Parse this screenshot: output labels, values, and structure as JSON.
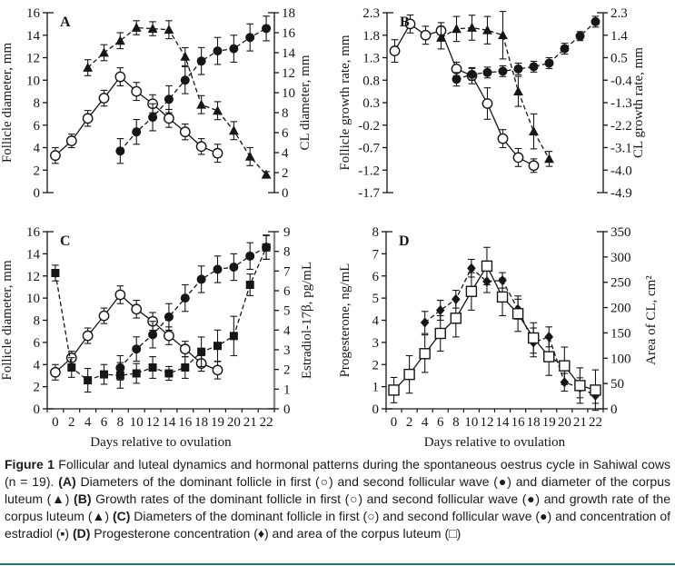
{
  "figure": {
    "caption_segments": [
      {
        "text": "Figure 1",
        "bold": true
      },
      {
        "text": " Follicular and luteal dynamics and hormonal patterns during the spontaneous oestrus cycle in Sahiwal cows (n = 19). ",
        "bold": false
      },
      {
        "text": "(A)",
        "bold": true
      },
      {
        "text": " Diameters of the dominant follicle in first (○) and second follicular wave (●) and diameter of the corpus luteum (▲) ",
        "bold": false
      },
      {
        "text": "(B)",
        "bold": true
      },
      {
        "text": " Growth rates of the dominant follicle in first (○) and second follicular wave (●) and growth rate of the corpus luteum (▲) ",
        "bold": false
      },
      {
        "text": "(C)",
        "bold": true
      },
      {
        "text": " Diameters of the dominant follicle in first (○) and second follicular wave (●) and concentration of estradiol (▪) ",
        "bold": false
      },
      {
        "text": "(D)",
        "bold": true
      },
      {
        "text": " Progesterone concentration (♦) and area of the corpus luteum (□)",
        "bold": false
      }
    ]
  },
  "chart_data": [
    {
      "id": "A",
      "type": "line",
      "x_axis": {
        "label": null,
        "categories": [
          0,
          2,
          4,
          6,
          8,
          10,
          12,
          14,
          16,
          18,
          19,
          20,
          21,
          22
        ],
        "show_labels": false
      },
      "left_axis": {
        "label": "Follicle diameter, mm",
        "min": 0,
        "max": 16,
        "step": 2,
        "ticks": [
          "0",
          "2",
          "4",
          "6",
          "8",
          "10",
          "12",
          "14",
          "16"
        ]
      },
      "right_axis": {
        "label": "CL diameter, mm",
        "min": 0,
        "max": 18,
        "step": 2,
        "ticks": [
          "0",
          "2",
          "4",
          "6",
          "8",
          "10",
          "12",
          "14",
          "16",
          "18"
        ]
      },
      "series": [
        {
          "name": "Dominant follicle diameter, first wave",
          "symbol": "○",
          "marker": "circle-open",
          "line": "solid",
          "axis": "left",
          "days": [
            0,
            2,
            4,
            6,
            8,
            10,
            12,
            14,
            16,
            18,
            19
          ],
          "values": [
            3.3,
            4.6,
            6.6,
            8.4,
            10.3,
            9.0,
            7.9,
            6.6,
            5.4,
            4.1,
            3.5
          ],
          "errors": [
            0.7,
            0.6,
            0.7,
            0.7,
            0.8,
            0.8,
            0.8,
            0.8,
            0.7,
            0.7,
            0.8
          ]
        },
        {
          "name": "Dominant follicle diameter, second wave",
          "symbol": "●",
          "marker": "circle-filled",
          "line": "dashed",
          "axis": "left",
          "days": [
            8,
            10,
            12,
            14,
            16,
            18,
            19,
            20,
            21,
            22
          ],
          "values": [
            3.7,
            5.4,
            6.7,
            8.3,
            10.0,
            11.7,
            12.6,
            12.8,
            13.8,
            14.6
          ],
          "errors": [
            1.1,
            1.1,
            1.2,
            1.2,
            1.2,
            1.2,
            1.2,
            1.2,
            1.2,
            1.1
          ]
        },
        {
          "name": "Corpus luteum diameter",
          "symbol": "▲",
          "marker": "triangle-filled",
          "line": "dashed",
          "axis": "right",
          "days": [
            4,
            6,
            8,
            10,
            12,
            14,
            16,
            18,
            19,
            20,
            21,
            22
          ],
          "values": [
            12.5,
            14.0,
            15.2,
            16.5,
            16.4,
            16.3,
            13.6,
            8.8,
            8.2,
            6.2,
            3.6,
            1.8
          ],
          "errors": [
            0.8,
            0.8,
            0.8,
            0.7,
            0.7,
            0.9,
            0.9,
            0.9,
            0.9,
            0.9,
            0.9,
            0.3
          ]
        }
      ]
    },
    {
      "id": "B",
      "type": "line",
      "x_axis": {
        "label": null,
        "categories": [
          0,
          2,
          4,
          6,
          8,
          10,
          12,
          14,
          16,
          18,
          19,
          20,
          21,
          22
        ],
        "show_labels": false
      },
      "left_axis": {
        "label": "Follicle growth rate, mm",
        "min": -1.7,
        "max": 2.3,
        "step": 0.5,
        "ticks": [
          "-1.7",
          "-1.2",
          "-0.7",
          "-0.2",
          "0.3",
          "0.8",
          "1.3",
          "1.8",
          "2.3"
        ]
      },
      "right_axis": {
        "label": "CL growth rate, mm",
        "min": -4.9,
        "max": 2.3,
        "step": 0.9,
        "ticks": [
          "-4.9",
          "-4.0",
          "-3.1",
          "-2.2",
          "-1.3",
          "-0.4",
          "0.5",
          "1.4",
          "2.3"
        ]
      },
      "series": [
        {
          "name": "Follicle growth rate, first wave",
          "symbol": "○",
          "marker": "circle-open",
          "line": "solid",
          "axis": "left",
          "days": [
            0,
            2,
            4,
            6,
            8,
            10,
            12,
            14,
            16,
            18
          ],
          "values": [
            1.45,
            2.05,
            1.8,
            1.9,
            1.05,
            0.9,
            0.28,
            -0.5,
            -0.92,
            -1.1
          ],
          "errors": [
            0.25,
            0.2,
            0.2,
            0.18,
            0.15,
            0.18,
            0.35,
            0.2,
            0.2,
            0.15
          ]
        },
        {
          "name": "Follicle growth rate, second wave",
          "symbol": "●",
          "marker": "circle-filled",
          "line": "dashed",
          "axis": "left",
          "days": [
            8,
            10,
            12,
            14,
            16,
            18,
            19,
            20,
            21,
            22
          ],
          "values": [
            0.82,
            0.93,
            0.97,
            1.0,
            1.05,
            1.1,
            1.18,
            1.5,
            1.78,
            2.1
          ],
          "errors": [
            0.15,
            0.13,
            0.12,
            0.12,
            0.13,
            0.12,
            0.12,
            0.12,
            0.1,
            0.12
          ]
        },
        {
          "name": "Corpus luteum growth rate",
          "symbol": "▲",
          "marker": "triangle-filled",
          "line": "dashed",
          "axis": "right",
          "days": [
            6,
            8,
            10,
            12,
            14,
            16,
            18,
            19
          ],
          "values": [
            1.3,
            1.65,
            1.7,
            1.6,
            1.4,
            -0.85,
            -2.45,
            -3.55
          ],
          "errors": [
            0.45,
            0.5,
            0.5,
            0.55,
            0.95,
            0.6,
            0.7,
            0.3
          ]
        }
      ]
    },
    {
      "id": "C",
      "type": "line",
      "x_axis": {
        "label": "Days relative to ovulation",
        "categories": [
          0,
          2,
          4,
          6,
          8,
          10,
          12,
          14,
          16,
          18,
          19,
          20,
          21,
          22
        ],
        "show_labels": true
      },
      "left_axis": {
        "label": "Follicle diameter, mm",
        "min": 0,
        "max": 16,
        "step": 2,
        "ticks": [
          "0",
          "2",
          "4",
          "6",
          "8",
          "10",
          "12",
          "14",
          "16"
        ]
      },
      "right_axis": {
        "label": "Estradiol-17β, pg/mL",
        "min": 0,
        "max": 9,
        "step": 1,
        "ticks": [
          "0",
          "1",
          "2",
          "3",
          "4",
          "5",
          "6",
          "7",
          "8",
          "9"
        ],
        "color": "#8a8a8a",
        "width": 2.4
      },
      "series": [
        {
          "name": "Dominant follicle diameter, first wave",
          "symbol": "○",
          "marker": "circle-open",
          "line": "solid",
          "axis": "left",
          "days": [
            0,
            2,
            4,
            6,
            8,
            10,
            12,
            14,
            16,
            18,
            19
          ],
          "values": [
            3.3,
            4.6,
            6.6,
            8.4,
            10.3,
            9.0,
            7.9,
            6.6,
            5.4,
            4.1,
            3.5
          ],
          "errors": [
            0.7,
            0.6,
            0.7,
            0.7,
            0.8,
            0.8,
            0.8,
            0.8,
            0.7,
            0.7,
            0.8
          ]
        },
        {
          "name": "Dominant follicle diameter, second wave",
          "symbol": "●",
          "marker": "circle-filled",
          "line": "dashed",
          "axis": "left",
          "days": [
            8,
            10,
            12,
            14,
            16,
            18,
            19,
            20,
            21,
            22
          ],
          "values": [
            3.7,
            5.4,
            6.7,
            8.3,
            10.0,
            11.7,
            12.6,
            12.8,
            13.8,
            14.6
          ],
          "errors": [
            1.1,
            1.1,
            1.2,
            1.2,
            1.2,
            1.2,
            1.2,
            1.2,
            1.2,
            1.1
          ]
        },
        {
          "name": "Estradiol-17β concentration",
          "symbol": "▪",
          "marker": "square-filled",
          "line": "dashed",
          "axis": "right",
          "days": [
            0,
            2,
            4,
            6,
            8,
            10,
            12,
            14,
            16,
            18,
            19,
            20,
            21,
            22
          ],
          "values": [
            6.9,
            2.1,
            1.45,
            1.75,
            1.7,
            1.8,
            2.1,
            1.8,
            2.1,
            2.9,
            3.2,
            3.7,
            6.3,
            8.2
          ],
          "errors": [
            0.4,
            0.5,
            0.6,
            0.5,
            0.65,
            0.5,
            0.55,
            0.35,
            0.55,
            0.75,
            0.8,
            1.0,
            0.55,
            0.6
          ]
        }
      ]
    },
    {
      "id": "D",
      "type": "line",
      "x_axis": {
        "label": "Days relative to ovulation",
        "categories": [
          0,
          2,
          4,
          6,
          8,
          10,
          12,
          14,
          16,
          18,
          19,
          20,
          21,
          22
        ],
        "show_labels": true
      },
      "left_axis": {
        "label": "Progesterone, ng/mL",
        "min": 0,
        "max": 8,
        "step": 1,
        "ticks": [
          "0",
          "1",
          "2",
          "3",
          "4",
          "5",
          "6",
          "7",
          "8"
        ]
      },
      "right_axis": {
        "label": "Area of CL, cm²",
        "min": 0,
        "max": 350,
        "step": 50,
        "ticks": [
          "0",
          "50",
          "100",
          "150",
          "200",
          "250",
          "300",
          "350"
        ]
      },
      "series": [
        {
          "name": "Progesterone concentration",
          "symbol": "♦",
          "marker": "diamond-filled",
          "line": "dashed",
          "axis": "left",
          "days": [
            4,
            6,
            8,
            10,
            12,
            14,
            16,
            18,
            19,
            20,
            21,
            22
          ],
          "values": [
            3.9,
            4.45,
            4.95,
            6.35,
            5.75,
            5.8,
            4.5,
            3.0,
            3.25,
            1.2,
            0.95,
            0.6
          ],
          "errors": [
            0.5,
            0.45,
            0.4,
            0.4,
            0.5,
            0.35,
            0.45,
            0.65,
            0.45,
            0.4,
            0.45,
            0.35
          ]
        },
        {
          "name": "Area of corpus luteum",
          "symbol": "□",
          "marker": "square-open",
          "line": "solid",
          "axis": "right",
          "days": [
            0,
            2,
            4,
            6,
            8,
            10,
            12,
            14,
            16,
            18,
            19,
            20,
            21,
            22
          ],
          "values": [
            37,
            68,
            109,
            149,
            179,
            232,
            282,
            221,
            188,
            140,
            103,
            85,
            46,
            37
          ],
          "errors": [
            25,
            37,
            37,
            35,
            37,
            37,
            37,
            37,
            35,
            30,
            37,
            37,
            35,
            40
          ]
        }
      ]
    }
  ]
}
